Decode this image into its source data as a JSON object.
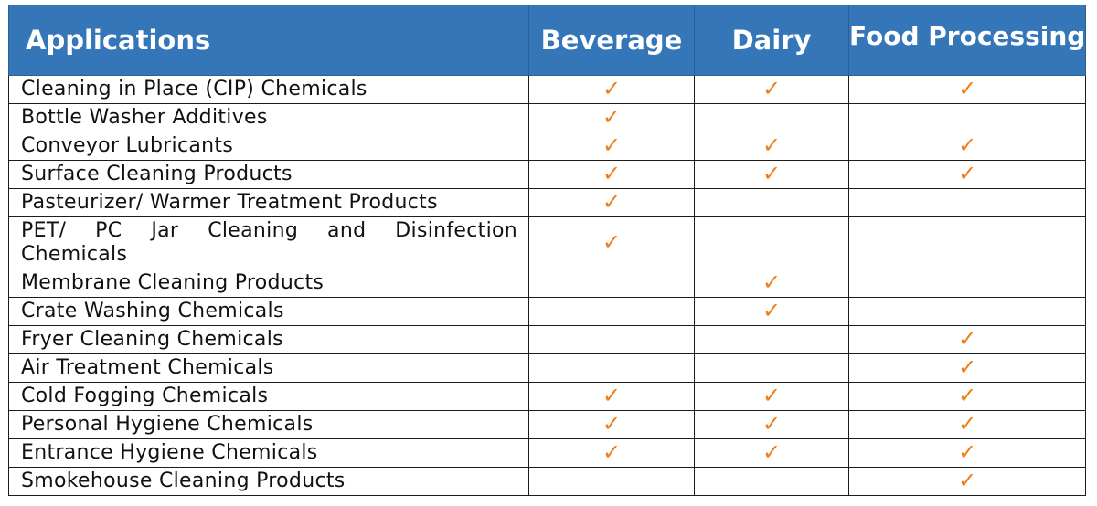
{
  "table": {
    "columns": [
      "Applications",
      "Beverage",
      "Dairy",
      "Food Processing"
    ],
    "check_color": "#ef7d1a",
    "header_color": "#3576b8",
    "check_icon": "checkmark-icon",
    "rows": [
      {
        "label": "Cleaning in Place (CIP) Chemicals",
        "marks": [
          true,
          true,
          true
        ]
      },
      {
        "label": "Bottle Washer Additives",
        "marks": [
          true,
          false,
          false
        ]
      },
      {
        "label": "Conveyor Lubricants",
        "marks": [
          true,
          true,
          true
        ]
      },
      {
        "label": "Surface Cleaning Products",
        "marks": [
          true,
          true,
          true
        ]
      },
      {
        "label": "Pasteurizer/ Warmer Treatment Products",
        "marks": [
          true,
          false,
          false
        ]
      },
      {
        "label": "PET/ PC Jar Cleaning and Disinfection Chemicals",
        "marks": [
          true,
          false,
          false
        ]
      },
      {
        "label": "Membrane Cleaning Products",
        "marks": [
          false,
          true,
          false
        ]
      },
      {
        "label": "Crate Washing Chemicals",
        "marks": [
          false,
          true,
          false
        ]
      },
      {
        "label": "Fryer Cleaning Chemicals",
        "marks": [
          false,
          false,
          true
        ]
      },
      {
        "label": "Air Treatment  Chemicals",
        "marks": [
          false,
          false,
          true
        ]
      },
      {
        "label": "Cold Fogging Chemicals",
        "marks": [
          true,
          true,
          true
        ]
      },
      {
        "label": "Personal Hygiene Chemicals",
        "marks": [
          true,
          true,
          true
        ]
      },
      {
        "label": "Entrance Hygiene Chemicals",
        "marks": [
          true,
          true,
          true
        ]
      },
      {
        "label": "Smokehouse Cleaning Products",
        "marks": [
          false,
          false,
          true
        ]
      }
    ]
  }
}
